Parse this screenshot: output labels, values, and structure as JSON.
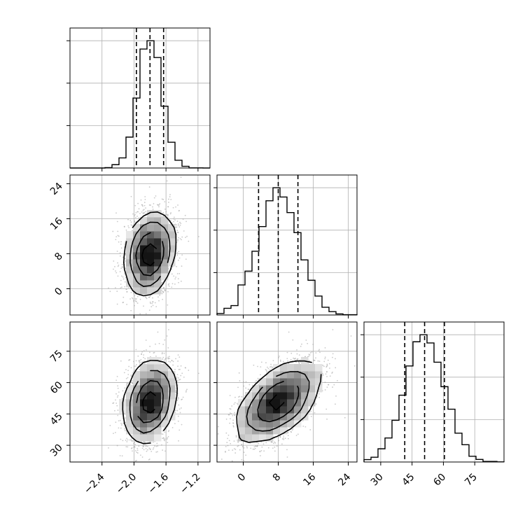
{
  "chart_data": {
    "type": "corner",
    "parameters": [
      {
        "name": "",
        "mean": -1.8,
        "sigma": 0.15,
        "q16": -1.97,
        "q50": -1.8,
        "q84": -1.63,
        "range": [
          -2.8,
          -1.05
        ],
        "ticks": [
          -2.4,
          -2.0,
          -1.6,
          -1.2
        ],
        "tick_labels": [
          "−2.4",
          "−2.0",
          "−1.6",
          "−1.2"
        ]
      },
      {
        "name": "",
        "mean": 8.0,
        "sigma": 4.6,
        "q16": 3.5,
        "q50": 8.0,
        "q84": 12.5,
        "range": [
          -6,
          26
        ],
        "ticks": [
          0,
          8,
          16,
          24
        ],
        "tick_labels": [
          "0",
          "8",
          "16",
          "24"
        ]
      },
      {
        "name": "",
        "mean": 51,
        "sigma": 9.5,
        "q16": 41.5,
        "q50": 51,
        "q84": 60.5,
        "range": [
          22,
          89
        ],
        "ticks": [
          30,
          45,
          60,
          75
        ],
        "tick_labels": [
          "30",
          "45",
          "60",
          "75"
        ]
      }
    ],
    "correlations": {
      "0_1": 0.22,
      "0_2": 0.25,
      "1_2": 0.55
    },
    "histogram_bins": 20,
    "histogram_line_color": "#000000",
    "scatter_color": "#9e9e9e",
    "grid": true,
    "legend": "none"
  }
}
